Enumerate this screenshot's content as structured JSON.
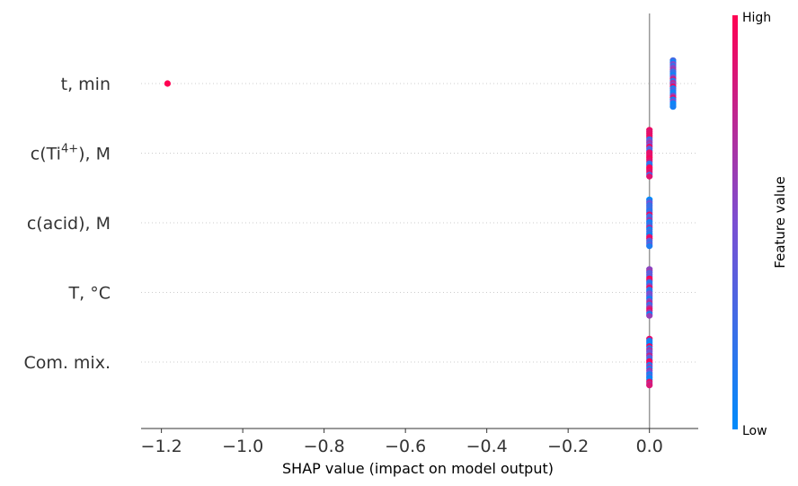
{
  "chart_data": {
    "type": "scatter",
    "subtype": "shap-beeswarm",
    "title": "",
    "xlabel": "SHAP value (impact on model output)",
    "ylabel": "",
    "xlim": [
      -1.25,
      0.12
    ],
    "xticks": [
      -1.2,
      -1.0,
      -0.8,
      -0.6,
      -0.4,
      -0.2,
      0.0
    ],
    "xtick_labels": [
      "−1.2",
      "−1.0",
      "−0.8",
      "−0.6",
      "−0.4",
      "−0.2",
      "0.0"
    ],
    "features": [
      {
        "label": "t, min",
        "points": [
          {
            "x": -1.185,
            "c": 1.0
          },
          {
            "x": 0.058,
            "n": 26,
            "pattern": "mixed-low"
          }
        ]
      },
      {
        "label_parts": [
          "c(Ti",
          "4+",
          "), M"
        ],
        "points": [
          {
            "x": 0.0,
            "n": 26,
            "pattern": "mixed-high"
          }
        ]
      },
      {
        "label": "c(acid), M",
        "points": [
          {
            "x": 0.0,
            "n": 26,
            "pattern": "mixed-low"
          }
        ]
      },
      {
        "label": "T, °C",
        "points": [
          {
            "x": 0.0,
            "n": 26,
            "pattern": "mixed-mid"
          }
        ]
      },
      {
        "label": "Com. mix.",
        "points": [
          {
            "x": 0.0,
            "n": 26,
            "pattern": "mixed-mid"
          }
        ]
      }
    ],
    "colorbar": {
      "title": "Feature value",
      "low_label": "Low",
      "high_label": "High",
      "low_color": "#008bfb",
      "mid_color": "#7b4fd2",
      "high_color": "#ff0052"
    },
    "grid": false,
    "zero_line": true
  }
}
